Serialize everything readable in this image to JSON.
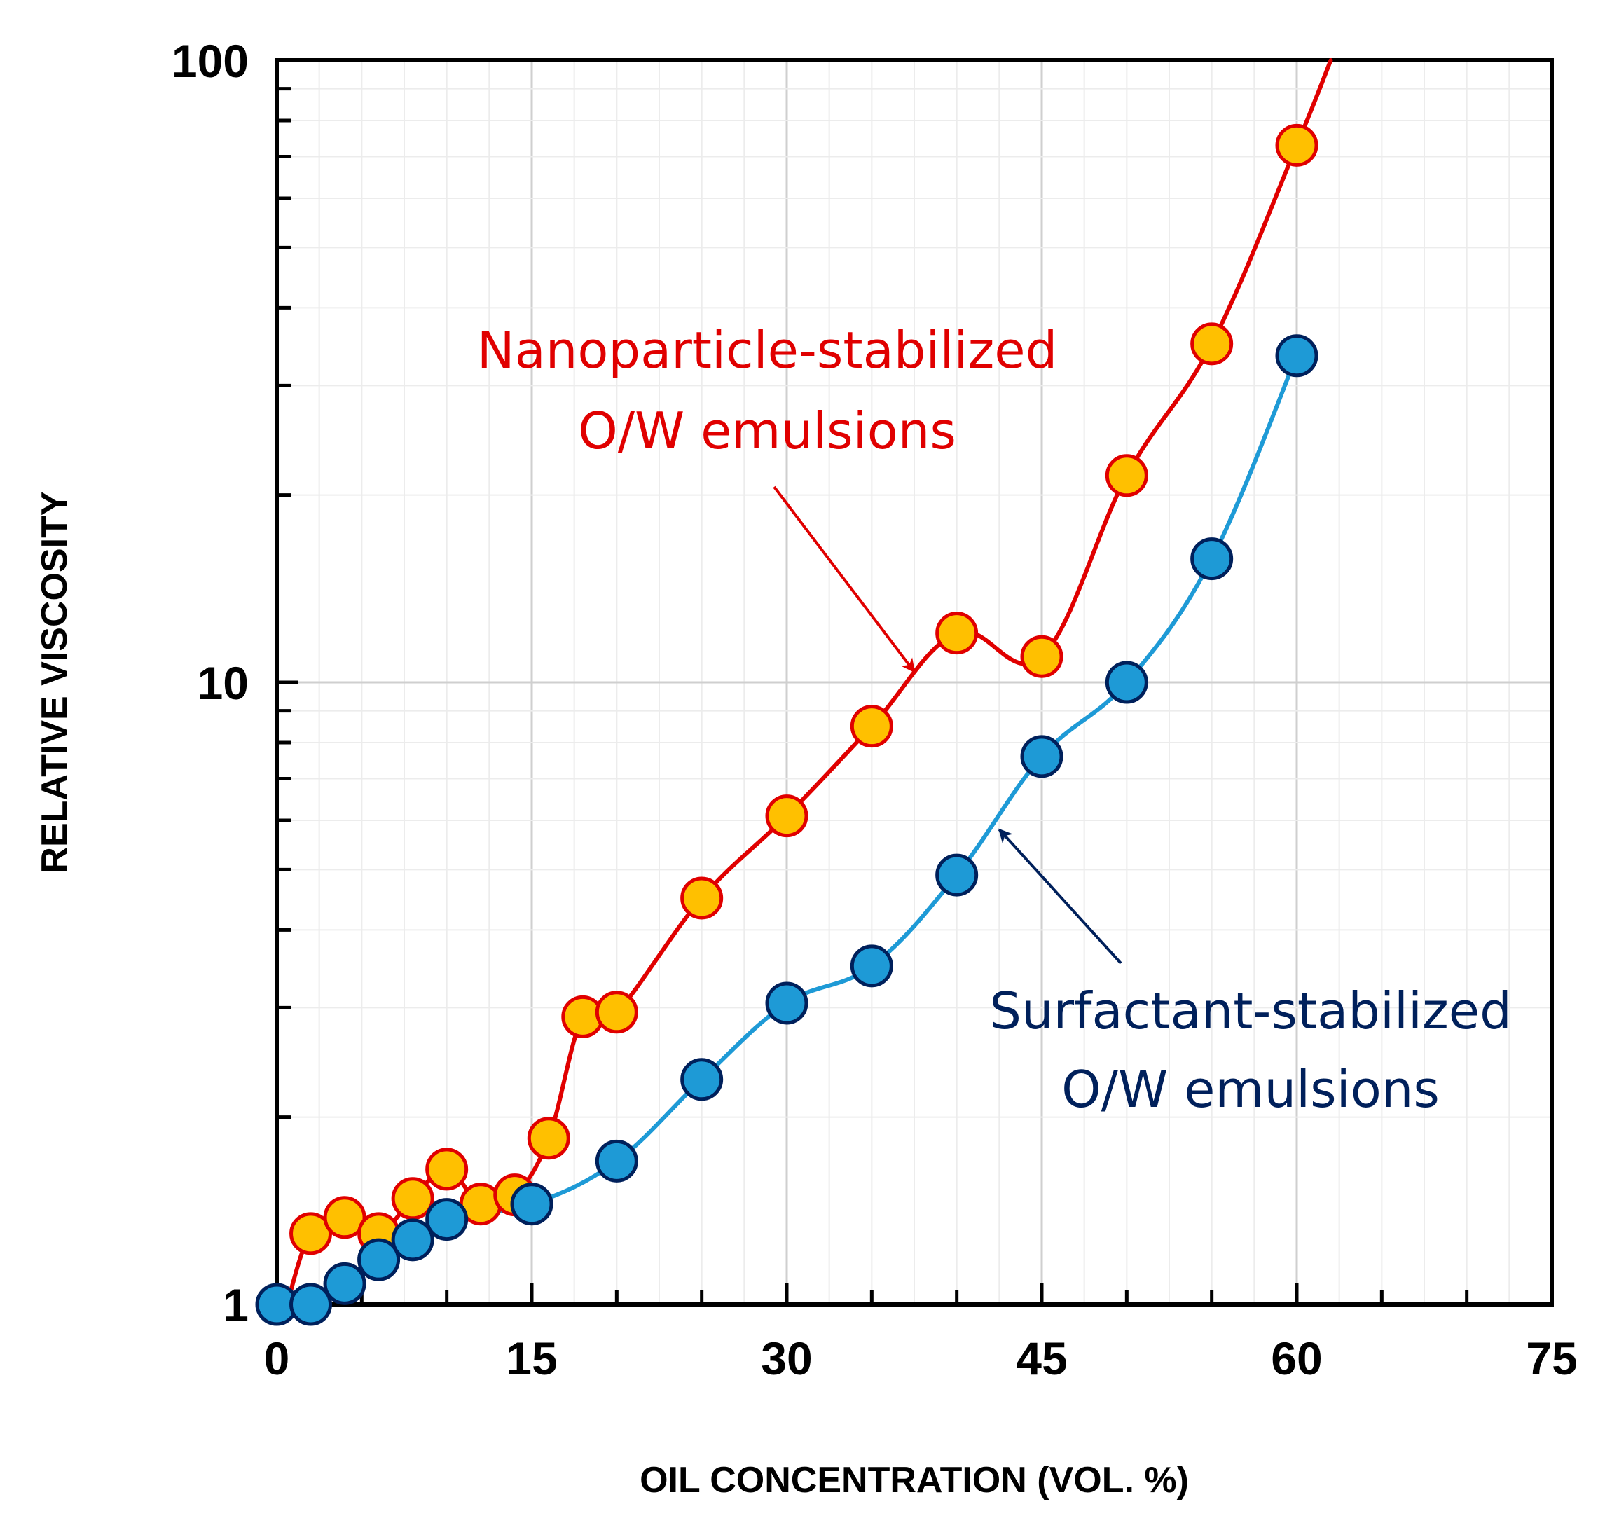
{
  "chart_data": {
    "type": "line",
    "xlabel": "OIL CONCENTRATION (VOL. %)",
    "ylabel": "RELATIVE VISCOSITY",
    "xlim": [
      0,
      75
    ],
    "ylim": [
      1,
      100
    ],
    "yscale": "log",
    "grid": true,
    "x_ticks": [
      0,
      15,
      30,
      45,
      60,
      75
    ],
    "x_tick_labels": [
      "0",
      "15",
      "30",
      "45",
      "60",
      "75"
    ],
    "y_ticks": [
      1,
      10,
      100
    ],
    "y_tick_labels": [
      "1",
      "10",
      "100"
    ],
    "series": [
      {
        "name": "Nanoparticle-stabilized O/W emulsions",
        "line_color": "#e00000",
        "marker_fill": "#ffc000",
        "marker_edge": "#e00000",
        "x": [
          2,
          4,
          6,
          8,
          10,
          12,
          14,
          16,
          18,
          20,
          25,
          30,
          35,
          40,
          45,
          50,
          55,
          60
        ],
        "y": [
          1.3,
          1.38,
          1.3,
          1.48,
          1.65,
          1.45,
          1.5,
          1.85,
          2.9,
          2.95,
          4.5,
          6.1,
          8.5,
          12.0,
          11.0,
          21.5,
          35.0,
          73.0
        ]
      },
      {
        "name": "Surfactant-stabilized O/W emulsions",
        "line_color": "#1e9ad6",
        "marker_fill": "#1e9ad6",
        "marker_edge": "#00205b",
        "x": [
          0,
          2,
          4,
          6,
          8,
          10,
          15,
          20,
          25,
          30,
          35,
          40,
          45,
          50,
          55,
          60
        ],
        "y": [
          1.0,
          1.0,
          1.08,
          1.18,
          1.27,
          1.37,
          1.45,
          1.7,
          2.3,
          3.05,
          3.5,
          4.9,
          7.6,
          10.0,
          15.8,
          33.5
        ]
      }
    ],
    "annotations": [
      {
        "lines": [
          "Nanoparticle-stabilized",
          "O/W emulsions"
        ],
        "color": "#e00000",
        "arrow_to": [
          37.5,
          10.4
        ]
      },
      {
        "lines": [
          "Surfactant-stabilized",
          "O/W emulsions"
        ],
        "color": "#00205b",
        "arrow_to": [
          42.5,
          5.8
        ]
      }
    ]
  }
}
